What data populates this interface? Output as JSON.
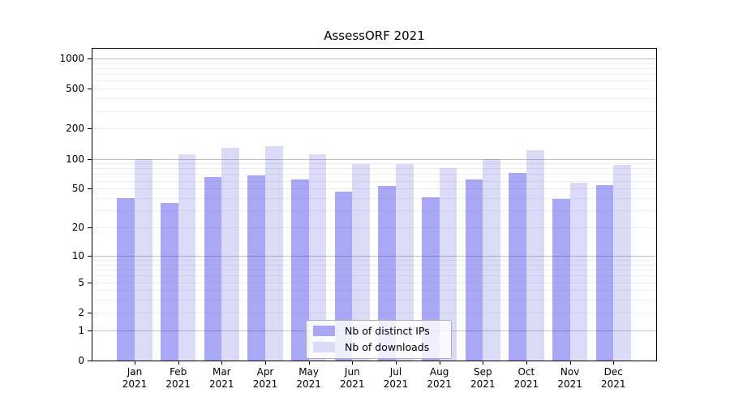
{
  "chart_data": {
    "type": "bar",
    "title": "AssessORF 2021",
    "categories": [
      "Jan 2021",
      "Feb 2021",
      "Mar 2021",
      "Apr 2021",
      "May 2021",
      "Jun 2021",
      "Jul 2021",
      "Aug 2021",
      "Sep 2021",
      "Oct 2021",
      "Nov 2021",
      "Dec 2021"
    ],
    "series": [
      {
        "name": "Nb of distinct IPs",
        "color": "#a8a8f6",
        "values": [
          40,
          36,
          65,
          68,
          62,
          47,
          53,
          41,
          62,
          72,
          39,
          54
        ]
      },
      {
        "name": "Nb of downloads",
        "color": "#dbdbf8",
        "values": [
          100,
          110,
          128,
          133,
          110,
          88,
          88,
          80,
          100,
          122,
          57,
          87
        ]
      }
    ],
    "xlabel": "",
    "ylabel": "",
    "yscale": "log1p",
    "ylim": [
      0,
      1200
    ],
    "yticks": [
      0,
      1,
      2,
      5,
      10,
      20,
      50,
      100,
      200,
      500,
      1000
    ],
    "grid": true,
    "legend_position": "inside lower-center"
  }
}
